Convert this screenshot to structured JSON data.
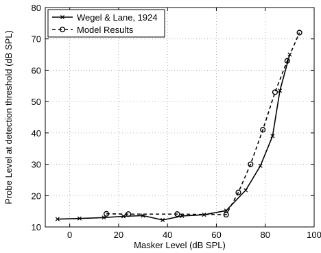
{
  "chart_data": {
    "type": "line",
    "xlabel": "Masker Level (dB SPL)",
    "ylabel": "Probe Level at detection threshold (dB SPL)",
    "xlim": [
      -10,
      100
    ],
    "ylim": [
      10,
      80
    ],
    "xticks": [
      0,
      20,
      40,
      60,
      80,
      100
    ],
    "yticks": [
      10,
      20,
      30,
      40,
      50,
      60,
      70,
      80
    ],
    "grid": true,
    "legend_position": "top-left",
    "series": [
      {
        "name": "Wegel & Lane, 1924",
        "style": "solid",
        "marker": "x",
        "color": "#000000",
        "x": [
          -5,
          4,
          14,
          22,
          30,
          38,
          46,
          55,
          64,
          72,
          78,
          83,
          86,
          90
        ],
        "y": [
          12.5,
          12.7,
          13.0,
          13.4,
          13.6,
          12.2,
          13.5,
          13.9,
          15.2,
          21.7,
          29.5,
          39.0,
          53.5,
          65.0
        ]
      },
      {
        "name": "Model Results",
        "style": "dashed",
        "marker": "o",
        "color": "#000000",
        "x": [
          15,
          24,
          44,
          64,
          69,
          74,
          79,
          84,
          89,
          94
        ],
        "y": [
          14.2,
          14.1,
          14.1,
          13.9,
          21.0,
          30.0,
          41.0,
          53.0,
          63.0,
          72.0
        ]
      }
    ]
  }
}
